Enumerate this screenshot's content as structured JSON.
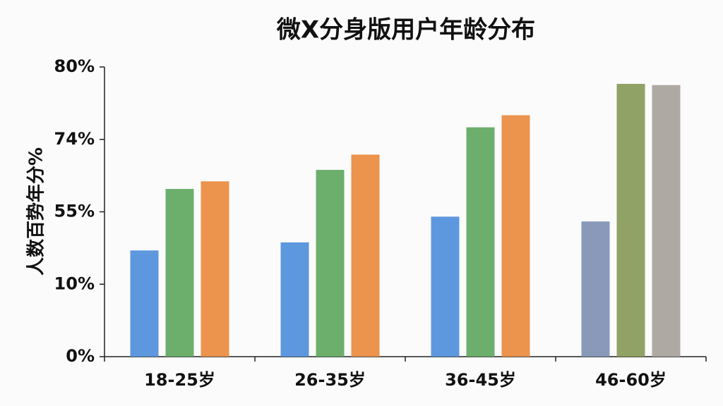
{
  "chart_data": {
    "type": "bar",
    "title": "微X分身版用户年龄分布",
    "y_label": "人数百势年分%",
    "categories": [
      "18-25岁",
      "26-35岁",
      "36-45岁",
      "46-60岁"
    ],
    "series": [
      {
        "colors": [
          "#4f8fdc",
          "#4f8fdc",
          "#4f8fdc",
          "#7f90b4"
        ],
        "values": [
          31,
          36,
          52,
          49
        ]
      },
      {
        "colors": [
          "#5fa85f",
          "#5fa85f",
          "#5fa85f",
          "#879a58"
        ],
        "values": [
          61,
          66,
          75,
          78.6
        ]
      },
      {
        "colors": [
          "#ea8a3e",
          "#ea8a3e",
          "#ea8a3e",
          "#a8a29c"
        ],
        "values": [
          63,
          70,
          76,
          78.5
        ]
      }
    ],
    "yscale": "piecewise",
    "ylim": [
      0,
      80
    ],
    "yticks": [
      {
        "value": 0,
        "label": "0%"
      },
      {
        "value": 10,
        "label": "10%"
      },
      {
        "value": 55,
        "label": "55%"
      },
      {
        "value": 74,
        "label": "74%"
      },
      {
        "value": 80,
        "label": "80%"
      }
    ]
  }
}
